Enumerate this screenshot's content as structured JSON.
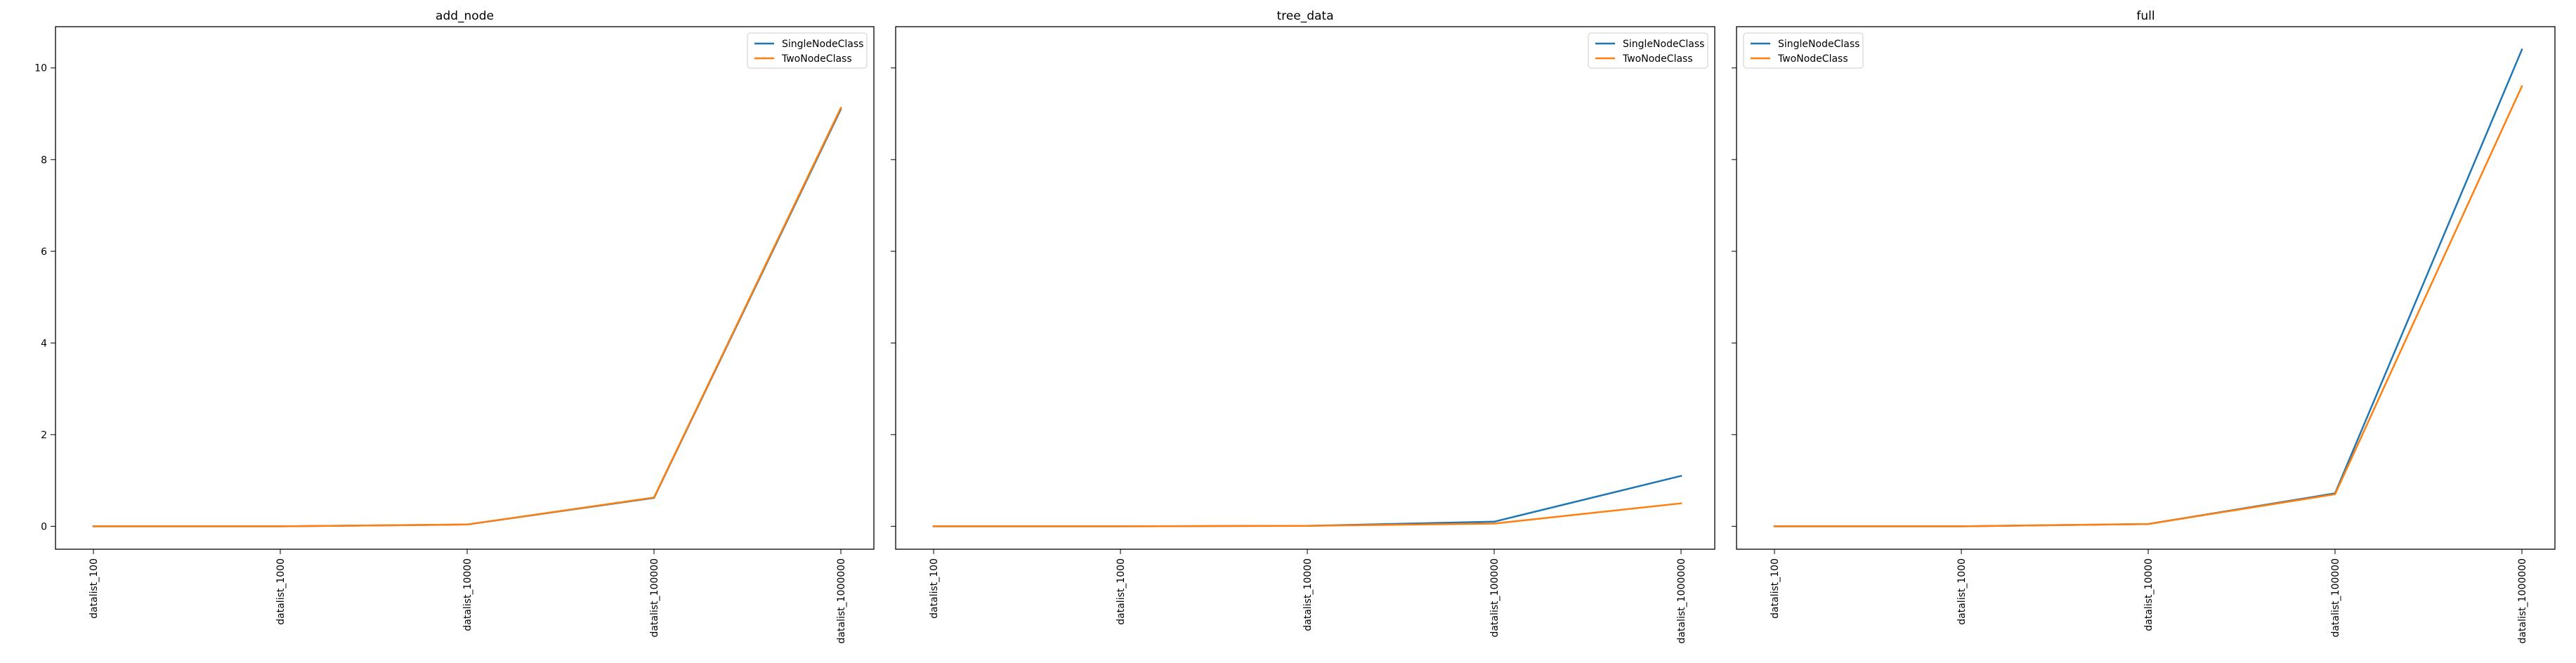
{
  "chart_data": [
    {
      "type": "line",
      "title": "add_node",
      "categories": [
        "datalist_100",
        "datalist_1000",
        "datalist_10000",
        "datalist_100000",
        "datalist_1000000"
      ],
      "ylim": [
        -0.5,
        10.9
      ],
      "yticks": [
        0,
        2,
        4,
        6,
        8,
        10
      ],
      "show_y_tick_labels": true,
      "grid": false,
      "legend_loc": "upper right",
      "series": [
        {
          "name": "SingleNodeClass",
          "color": "#1f77b4",
          "values": [
            0.0,
            0.0,
            0.04,
            0.62,
            9.1
          ]
        },
        {
          "name": "TwoNodeClass",
          "color": "#ff7f0e",
          "values": [
            0.0,
            0.0,
            0.04,
            0.63,
            9.13
          ]
        }
      ]
    },
    {
      "type": "line",
      "title": "tree_data",
      "categories": [
        "datalist_100",
        "datalist_1000",
        "datalist_10000",
        "datalist_100000",
        "datalist_1000000"
      ],
      "ylim": [
        -0.5,
        10.9
      ],
      "yticks": [
        0,
        2,
        4,
        6,
        8,
        10
      ],
      "show_y_tick_labels": false,
      "grid": false,
      "legend_loc": "upper right",
      "series": [
        {
          "name": "SingleNodeClass",
          "color": "#1f77b4",
          "values": [
            0.0,
            0.0,
            0.01,
            0.1,
            1.1
          ]
        },
        {
          "name": "TwoNodeClass",
          "color": "#ff7f0e",
          "values": [
            0.0,
            0.0,
            0.01,
            0.06,
            0.5
          ]
        }
      ]
    },
    {
      "type": "line",
      "title": "full",
      "categories": [
        "datalist_100",
        "datalist_1000",
        "datalist_10000",
        "datalist_100000",
        "datalist_1000000"
      ],
      "ylim": [
        -0.5,
        10.9
      ],
      "yticks": [
        0,
        2,
        4,
        6,
        8,
        10
      ],
      "show_y_tick_labels": false,
      "grid": false,
      "legend_loc": "upper left",
      "series": [
        {
          "name": "SingleNodeClass",
          "color": "#1f77b4",
          "values": [
            0.0,
            0.0,
            0.05,
            0.72,
            10.4
          ]
        },
        {
          "name": "TwoNodeClass",
          "color": "#ff7f0e",
          "values": [
            0.0,
            0.0,
            0.05,
            0.7,
            9.6
          ]
        }
      ]
    }
  ]
}
